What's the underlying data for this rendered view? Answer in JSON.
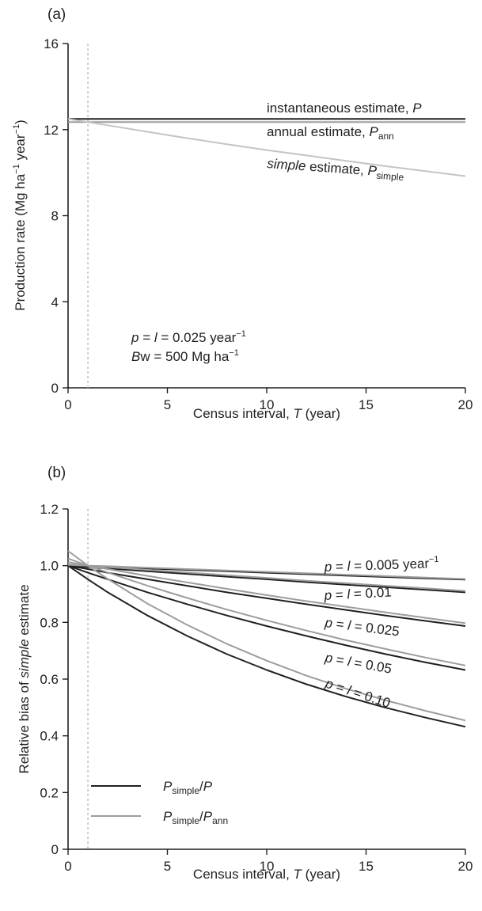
{
  "colors": {
    "black_series": "#231f20",
    "gray_series": "#9d9d9d",
    "light_series": "#c4c4c4",
    "reference_line": "#b5b5b5"
  },
  "chart_data": [
    {
      "type": "line",
      "panel_label": "(a)",
      "xlabel_prefix": "Census interval, ",
      "xlabel_var": "T",
      "xlabel_suffix": " (year)",
      "ylabel_prefix": "Production rate (Mg ha",
      "ylabel_sup1": "−1",
      "ylabel_mid": " year",
      "ylabel_sup2": "−1",
      "ylabel_suffix": ")",
      "xlim": [
        0,
        20
      ],
      "ylim": [
        0,
        16
      ],
      "xticks": [
        "0",
        "5",
        "10",
        "15",
        "20"
      ],
      "yticks": [
        "0",
        "4",
        "8",
        "12",
        "16"
      ],
      "reference_x": 1,
      "x": [
        0,
        1,
        2,
        4,
        6,
        8,
        10,
        12,
        14,
        16,
        18,
        20
      ],
      "series": [
        {
          "key": "P",
          "label_text": "instantaneous estimate, ",
          "label_var": "P",
          "color": "#231f20",
          "values": [
            12.5,
            12.5,
            12.5,
            12.5,
            12.5,
            12.5,
            12.5,
            12.5,
            12.5,
            12.5,
            12.5,
            12.5
          ]
        },
        {
          "key": "Pann",
          "label_text": "annual estimate, ",
          "label_var": "P",
          "label_sub": "ann",
          "color": "#9d9d9d",
          "values": [
            12.35,
            12.35,
            12.35,
            12.35,
            12.35,
            12.35,
            12.35,
            12.35,
            12.35,
            12.35,
            12.35,
            12.35
          ]
        },
        {
          "key": "Psimple",
          "label_italic": "simple",
          "label_text": " estimate, ",
          "label_var": "P",
          "label_sub": "simple",
          "color": "#c4c4c4",
          "values": [
            12.5,
            12.35,
            12.2,
            11.9,
            11.6,
            11.32,
            11.05,
            10.8,
            10.55,
            10.3,
            10.07,
            9.84
          ]
        }
      ],
      "annotation_line1_var": "p",
      "annotation_line1_mid": " = ",
      "annotation_line1_var2": "l",
      "annotation_line1_text": " = 0.025 year",
      "annotation_line1_sup": "−1",
      "annotation_line2_var": "B",
      "annotation_line2_text": "w = 500 Mg ha",
      "annotation_line2_sup": "−1"
    },
    {
      "type": "line",
      "panel_label": "(b)",
      "xlabel_prefix": "Census interval, ",
      "xlabel_var": "T",
      "xlabel_suffix": " (year)",
      "ylabel_prefix": "Relative bias of ",
      "ylabel_italic": "simple",
      "ylabel_suffix": " estimate",
      "xlim": [
        0,
        20
      ],
      "ylim": [
        0,
        1.2
      ],
      "xticks": [
        "0",
        "5",
        "10",
        "15",
        "20"
      ],
      "yticks": [
        "0",
        "0.2",
        "0.4",
        "0.6",
        "0.8",
        "1.0",
        "1.2"
      ],
      "reference_x": 1,
      "x": [
        0,
        1,
        2,
        4,
        6,
        8,
        10,
        12,
        14,
        16,
        18,
        20
      ],
      "series": [
        {
          "key": "black_0.005",
          "group": "Psimple/P",
          "color": "#231f20",
          "values": [
            1.0,
            0.998,
            0.995,
            0.99,
            0.985,
            0.98,
            0.975,
            0.97,
            0.965,
            0.96,
            0.955,
            0.951
          ]
        },
        {
          "key": "black_0.01",
          "group": "Psimple/P",
          "color": "#231f20",
          "values": [
            1.0,
            0.995,
            0.99,
            0.98,
            0.971,
            0.961,
            0.952,
            0.942,
            0.933,
            0.924,
            0.915,
            0.906
          ]
        },
        {
          "key": "black_0.025",
          "group": "Psimple/P",
          "color": "#231f20",
          "values": [
            1.0,
            0.988,
            0.975,
            0.952,
            0.929,
            0.906,
            0.885,
            0.864,
            0.844,
            0.824,
            0.805,
            0.787
          ]
        },
        {
          "key": "black_0.05",
          "group": "Psimple/P",
          "color": "#231f20",
          "values": [
            1.0,
            0.975,
            0.952,
            0.906,
            0.864,
            0.824,
            0.787,
            0.752,
            0.719,
            0.688,
            0.659,
            0.632
          ]
        },
        {
          "key": "black_0.10",
          "group": "Psimple/P",
          "color": "#231f20",
          "values": [
            1.0,
            0.952,
            0.906,
            0.824,
            0.752,
            0.688,
            0.632,
            0.582,
            0.538,
            0.499,
            0.464,
            0.432
          ]
        },
        {
          "key": "gray_0.005",
          "group": "Psimple/Pann",
          "color": "#9d9d9d",
          "values": [
            1.003,
            1.0,
            0.998,
            0.993,
            0.988,
            0.983,
            0.978,
            0.973,
            0.968,
            0.963,
            0.958,
            0.953
          ]
        },
        {
          "key": "gray_0.01",
          "group": "Psimple/Pann",
          "color": "#9d9d9d",
          "values": [
            1.005,
            1.0,
            0.995,
            0.985,
            0.976,
            0.966,
            0.957,
            0.947,
            0.938,
            0.929,
            0.92,
            0.911
          ]
        },
        {
          "key": "gray_0.025",
          "group": "Psimple/Pann",
          "color": "#9d9d9d",
          "values": [
            1.013,
            1.0,
            0.988,
            0.964,
            0.941,
            0.918,
            0.896,
            0.875,
            0.855,
            0.835,
            0.816,
            0.797
          ]
        },
        {
          "key": "gray_0.05",
          "group": "Psimple/Pann",
          "color": "#9d9d9d",
          "values": [
            1.025,
            1.0,
            0.976,
            0.929,
            0.886,
            0.845,
            0.807,
            0.771,
            0.737,
            0.706,
            0.676,
            0.648
          ]
        },
        {
          "key": "gray_0.10",
          "group": "Psimple/Pann",
          "color": "#9d9d9d",
          "values": [
            1.052,
            1.0,
            0.953,
            0.866,
            0.791,
            0.724,
            0.665,
            0.612,
            0.566,
            0.525,
            0.488,
            0.454
          ]
        }
      ],
      "curve_labels": [
        {
          "var1": "p",
          "mid": " = ",
          "var2": "l",
          "text": " = 0.005 year",
          "sup": "−1"
        },
        {
          "var1": "p",
          "mid": " = ",
          "var2": "l",
          "text": " = 0.01",
          "sup": ""
        },
        {
          "var1": "p",
          "mid": " = ",
          "var2": "l",
          "text": " = 0.025",
          "sup": ""
        },
        {
          "var1": "p",
          "mid": " = ",
          "var2": "l",
          "text": " = 0.05",
          "sup": ""
        },
        {
          "var1": "p",
          "mid": " = ",
          "var2": "l",
          "text": " = 0.10",
          "sup": ""
        }
      ],
      "legend": [
        {
          "var1": "P",
          "sub1": "simple",
          "slash": "/",
          "var2": "P",
          "sub2": "",
          "color": "#231f20"
        },
        {
          "var1": "P",
          "sub1": "simple",
          "slash": "/",
          "var2": "P",
          "sub2": "ann",
          "color": "#9d9d9d"
        }
      ]
    }
  ]
}
